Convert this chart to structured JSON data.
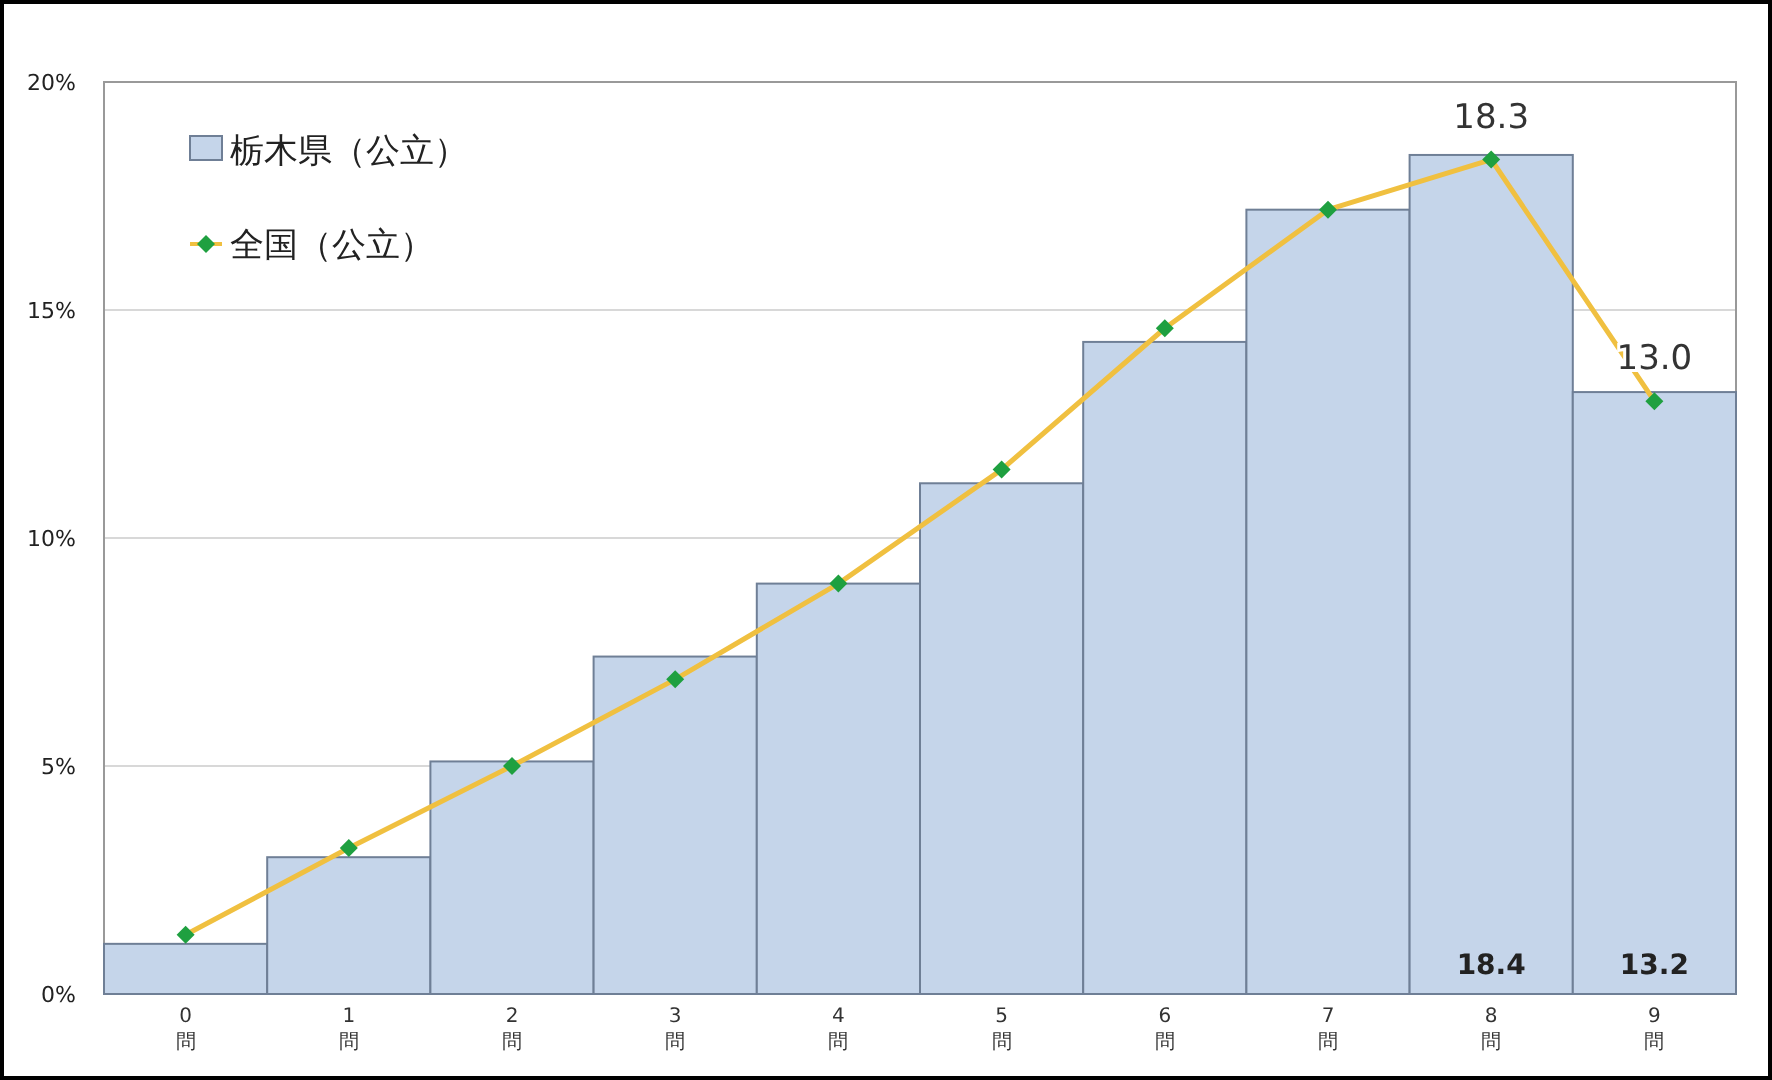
{
  "chart_data": {
    "type": "bar",
    "categories": [
      "0問",
      "1問",
      "2問",
      "3問",
      "4問",
      "5問",
      "6問",
      "7問",
      "8問",
      "9問"
    ],
    "series": [
      {
        "name": "栃木県（公立）",
        "color": "#c5d5ea",
        "values": [
          1.1,
          3.0,
          5.1,
          7.4,
          9.0,
          11.2,
          14.3,
          17.2,
          18.4,
          13.2
        ],
        "value_labels": [
          null,
          null,
          null,
          null,
          null,
          null,
          null,
          null,
          "18.4",
          "13.2"
        ]
      },
      {
        "name": "全国（公立）",
        "type": "line",
        "color": "#f0c040",
        "marker": "diamond",
        "values": [
          1.3,
          3.2,
          5.0,
          6.9,
          9.0,
          11.5,
          14.6,
          17.2,
          18.3,
          13.0
        ],
        "value_labels": [
          null,
          null,
          null,
          null,
          null,
          null,
          null,
          null,
          "18.3",
          "13.0"
        ]
      }
    ],
    "ylim": [
      0,
      20
    ],
    "yticks": [
      {
        "value": 0,
        "label": "0%"
      },
      {
        "value": 5,
        "label": "5%"
      },
      {
        "value": 10,
        "label": "10%"
      },
      {
        "value": 15,
        "label": "15%"
      },
      {
        "value": 20,
        "label": "20%"
      }
    ],
    "grid": "y",
    "legend": "top left"
  }
}
